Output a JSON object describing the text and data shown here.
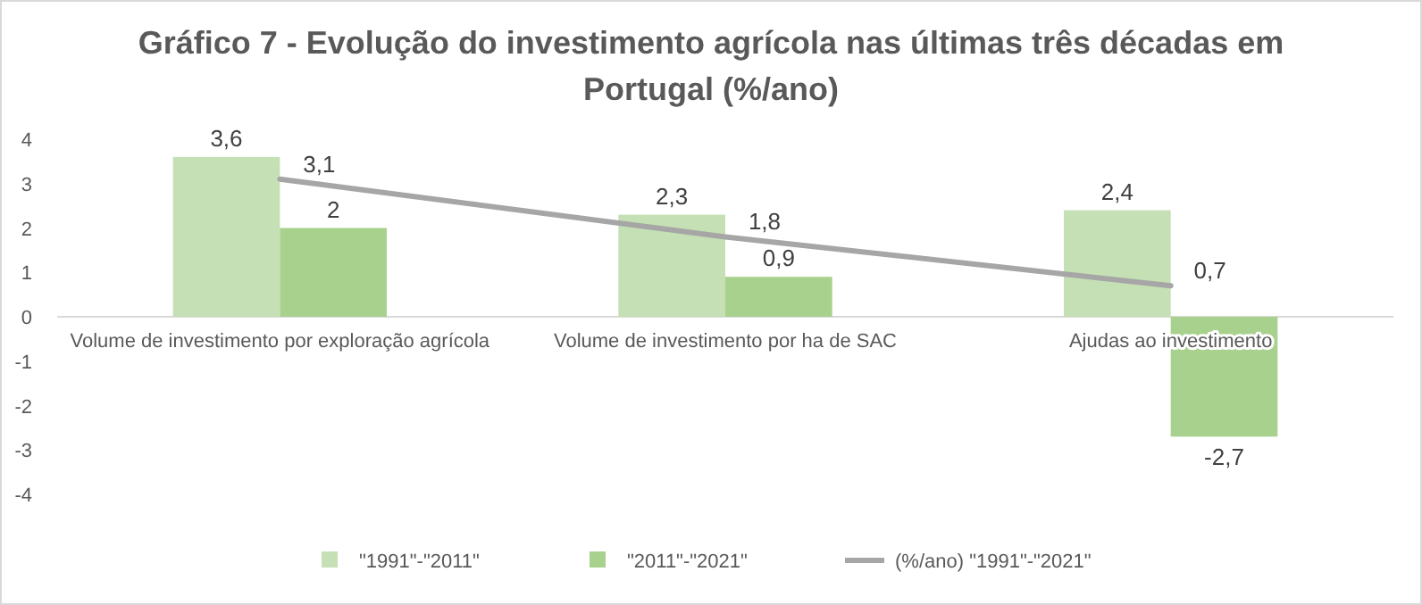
{
  "chart_data": {
    "type": "bar",
    "title": "Gráfico 7 - Evolução do investimento agrícola nas últimas três décadas em Portugal (%/ano)",
    "categories": [
      "Volume de investimento por exploração agrícola",
      "Volume de investimento por ha de SAC",
      "Ajudas ao investimento"
    ],
    "series": [
      {
        "name": "\"1991\"-\"2011\"",
        "color": "#c5e0b4",
        "values": [
          3.6,
          2.3,
          2.4
        ],
        "value_labels": [
          "3,6",
          "2,3",
          "2,4"
        ]
      },
      {
        "name": "\"2011\"-\"2021\"",
        "color": "#a9d18e",
        "values": [
          2,
          0.9,
          -2.7
        ],
        "value_labels": [
          "2",
          "0,9",
          "-2,7"
        ]
      },
      {
        "name": "(%/ano) \"1991\"-\"2021\"",
        "type": "line",
        "color": "#a6a6a6",
        "values": [
          3.1,
          1.8,
          0.7
        ],
        "value_labels": [
          "3,1",
          "1,8",
          "0,7"
        ]
      }
    ],
    "ylim": [
      -4,
      4
    ],
    "yticks": [
      -4,
      -3,
      -2,
      -1,
      0,
      1,
      2,
      3,
      4
    ],
    "legend": "bottom",
    "grid": false,
    "marker": "none"
  }
}
